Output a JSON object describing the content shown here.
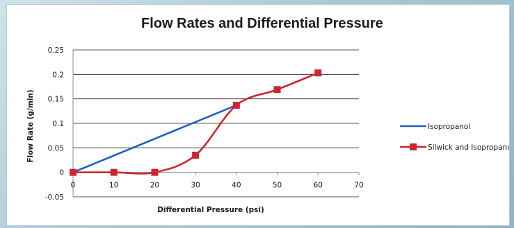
{
  "chart_data": {
    "type": "line",
    "title": "Flow Rates and Differential Pressure",
    "xlabel": "Differential Pressure (psi)",
    "ylabel": "Flow Rate (g/min)",
    "xlim": [
      0,
      70
    ],
    "ylim": [
      -0.05,
      0.25
    ],
    "x_ticks": [
      "0",
      "10",
      "20",
      "30",
      "40",
      "50",
      "60",
      "70"
    ],
    "y_ticks": [
      "-0.05",
      "0",
      "0.05",
      "0.1",
      "0.15",
      "0.2",
      "0.25"
    ],
    "grid": "horizontal",
    "legend_position": "right",
    "series": [
      {
        "name": "Isopropanol",
        "color": "#1f5fbf",
        "marker": "none",
        "points": [
          [
            0,
            0.0
          ],
          [
            40,
            0.137
          ]
        ]
      },
      {
        "name": "Silwick and Isopropanol",
        "color": "#c8282e",
        "marker": "square",
        "points": [
          [
            0,
            0.0
          ],
          [
            10,
            0.0
          ],
          [
            20,
            0.0
          ],
          [
            30,
            0.035
          ],
          [
            40,
            0.137
          ],
          [
            50,
            0.169
          ],
          [
            60,
            0.203
          ]
        ]
      }
    ]
  }
}
